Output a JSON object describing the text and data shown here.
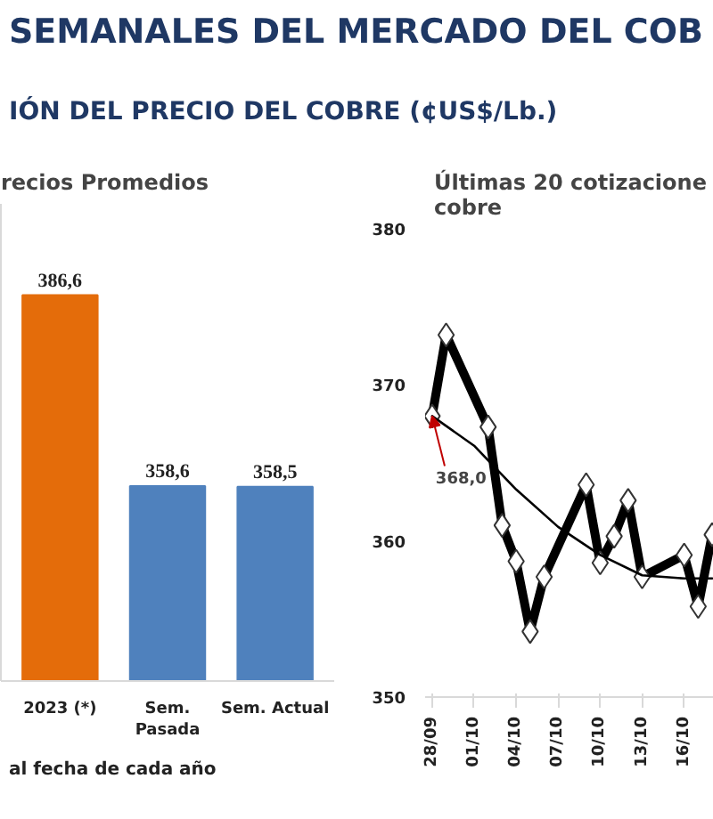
{
  "chart_data": [
    {
      "type": "bar",
      "title": "recios Promedios",
      "annotations": [
        "SEMANALES DEL MERCADO DEL COB",
        "IÓN DEL PRECIO DEL COBRE (¢US$/Lb.)",
        "al fecha de cada año"
      ],
      "categories": [
        "2023 (*)",
        "Sem. Pasada",
        "Sem. Actual"
      ],
      "values": [
        386.6,
        358.6,
        358.5
      ],
      "value_labels": [
        "386,6",
        "358,6",
        "358,5"
      ],
      "colors": [
        "#e46c0a",
        "#4f81bd",
        "#4f81bd"
      ],
      "ylim": [
        330,
        400
      ],
      "tick_labels": "x",
      "grid": false
    },
    {
      "type": "line",
      "title": "Últimas 20 cotizacione\ncobre",
      "x": [
        "2023-09-28",
        "2023-09-29",
        "2023-10-02",
        "2023-10-03",
        "2023-10-04",
        "2023-10-05",
        "2023-10-06",
        "2023-10-09",
        "2023-10-10",
        "2023-10-11",
        "2023-10-12",
        "2023-10-13",
        "2023-10-16",
        "2023-10-17",
        "2023-10-18"
      ],
      "series": [
        {
          "color": "#000000",
          "marker": "diamond",
          "values": [
            368.0,
            373.2,
            367.3,
            361.0,
            358.7,
            354.2,
            357.7,
            363.6,
            358.6,
            360.3,
            362.6,
            357.7,
            359.1,
            355.8,
            360.4
          ]
        },
        {
          "type": "line",
          "color": "#000000",
          "marker": "none",
          "x": [
            "2023-09-28",
            "2023-10-01",
            "2023-10-04",
            "2023-10-07",
            "2023-10-10",
            "2023-10-13",
            "2023-10-16",
            "2023-10-18"
          ],
          "values": [
            368.0,
            366.1,
            363.3,
            360.9,
            359.1,
            357.8,
            357.6,
            357.6
          ]
        }
      ],
      "annotations": [
        {
          "text": "368,0",
          "x": "2023-09-28",
          "y": 368.0
        }
      ],
      "xlim": [
        "2023-09-27T12:00",
        "2023-10-18T06:00"
      ],
      "xticks": [
        {
          "value": "2023-09-28",
          "label": "28/09"
        },
        {
          "value": "2023-10-01",
          "label": "01/10"
        },
        {
          "value": "2023-10-04",
          "label": "04/10"
        },
        {
          "value": "2023-10-07",
          "label": "07/10"
        },
        {
          "value": "2023-10-10",
          "label": "10/10"
        },
        {
          "value": "2023-10-13",
          "label": "13/10"
        },
        {
          "value": "2023-10-16",
          "label": "16/10"
        }
      ],
      "ylim": [
        350,
        380
      ],
      "yticks": [
        350,
        360,
        370,
        380
      ],
      "grid": false
    }
  ]
}
